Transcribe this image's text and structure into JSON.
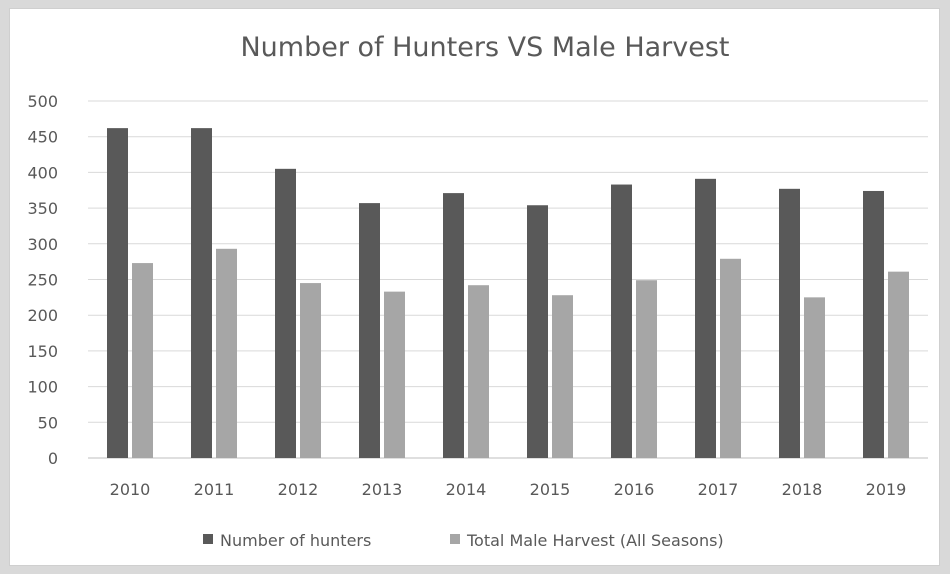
{
  "chart_data": {
    "type": "bar",
    "title": "Number of Hunters VS Male Harvest",
    "categories": [
      "2010",
      "2011",
      "2012",
      "2013",
      "2014",
      "2015",
      "2016",
      "2017",
      "2018",
      "2019"
    ],
    "series": [
      {
        "name": "Number of hunters",
        "color": "#595959",
        "values": [
          462,
          462,
          405,
          357,
          371,
          354,
          383,
          391,
          377,
          374
        ]
      },
      {
        "name": "Total Male Harvest (All Seasons)",
        "color": "#a6a6a6",
        "values": [
          273,
          293,
          245,
          233,
          242,
          228,
          249,
          279,
          225,
          261
        ]
      }
    ],
    "y_ticks": [
      "0",
      "50",
      "100",
      "150",
      "200",
      "250",
      "300",
      "350",
      "400",
      "450",
      "500"
    ],
    "ylim": [
      0,
      500
    ],
    "grid": true,
    "legend_position": "bottom"
  }
}
